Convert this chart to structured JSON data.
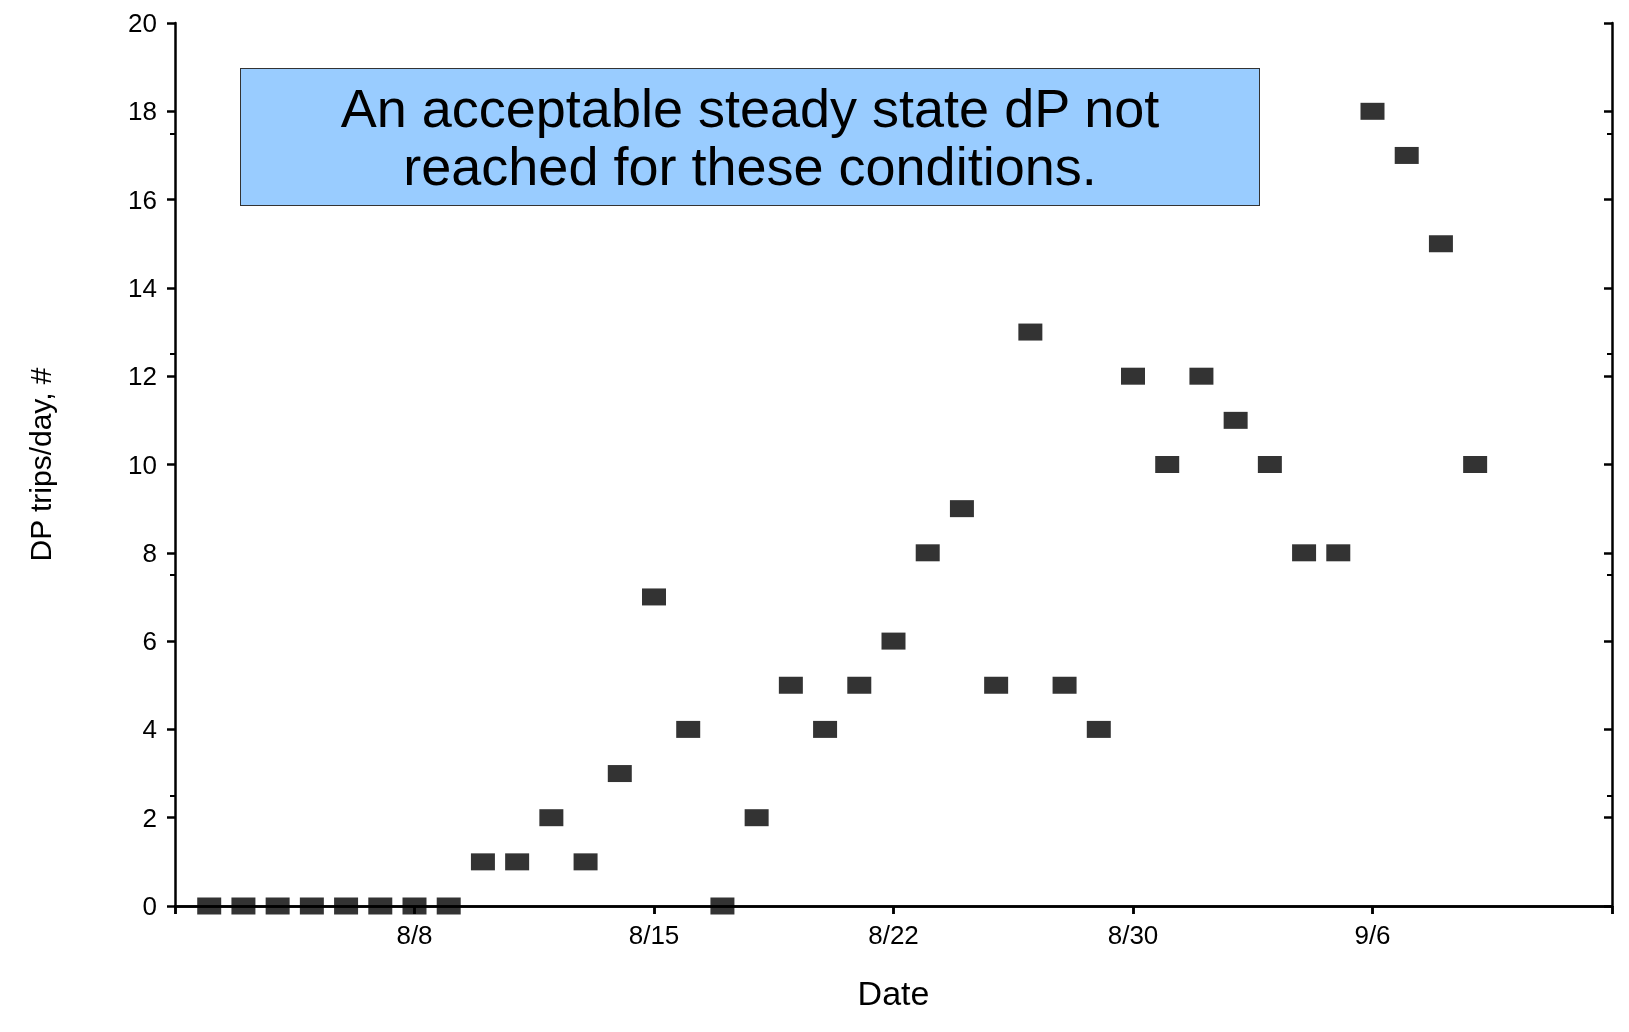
{
  "chart_data": {
    "type": "scatter",
    "xlabel": "Date",
    "ylabel": "DP trips/day, #",
    "categories": [
      null,
      null,
      null,
      null,
      null,
      null,
      null,
      "8/8",
      null,
      null,
      null,
      null,
      null,
      null,
      "8/15",
      null,
      null,
      null,
      null,
      null,
      null,
      "8/22",
      null,
      null,
      null,
      null,
      null,
      null,
      "8/30",
      null,
      null,
      null,
      null,
      null,
      null,
      "9/6",
      null,
      null,
      null,
      null,
      null,
      null,
      null
    ],
    "series": [
      {
        "color": "#000000",
        "values": [
          null,
          0,
          0,
          0,
          0,
          0,
          0,
          0,
          0,
          1,
          1,
          2,
          1,
          3,
          7,
          4,
          0,
          2,
          5,
          4,
          5,
          6,
          8,
          9,
          5,
          13,
          5,
          4,
          12,
          10,
          12,
          11,
          10,
          8,
          8,
          18,
          17,
          15,
          10,
          null,
          null,
          null,
          null
        ]
      }
    ],
    "ylim": [
      0,
      20
    ],
    "yticks": [
      0,
      2,
      4,
      6,
      8,
      10,
      12,
      14,
      16,
      18,
      20
    ],
    "marker": "square",
    "grid": false,
    "annotations": [
      "An acceptable steady state dP not reached for these conditions."
    ]
  }
}
